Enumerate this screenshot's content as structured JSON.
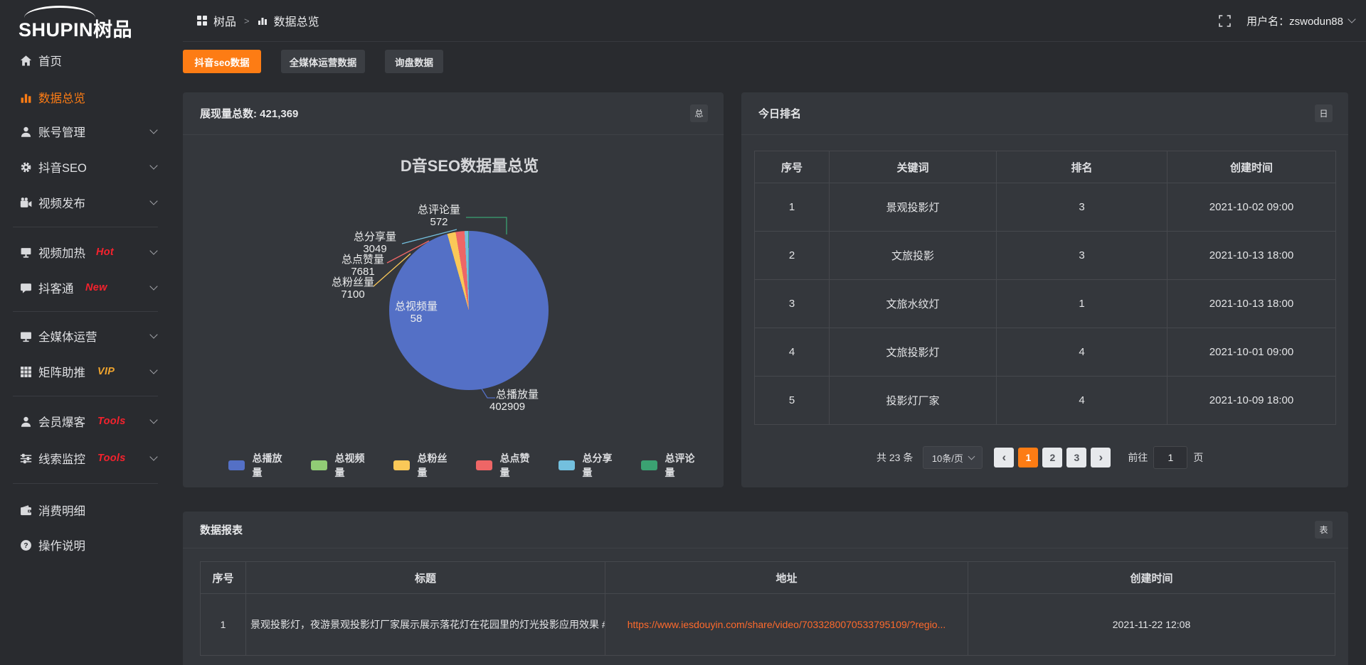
{
  "topbar": {
    "logo": "SHUPIN树品",
    "breadcrumb": {
      "root": "树品",
      "separator": ">",
      "current": "数据总览"
    },
    "username": "用户名：zswodun88"
  },
  "sidebar": {
    "items": [
      {
        "label": "首页"
      },
      {
        "label": "数据总览"
      },
      {
        "label": "账号管理"
      },
      {
        "label": "抖音SEO"
      },
      {
        "label": "视频发布"
      },
      {
        "label": "视频加热",
        "badge": "Hot"
      },
      {
        "label": "抖客通",
        "badge": "New"
      },
      {
        "label": "全媒体运营"
      },
      {
        "label": "矩阵助推",
        "badge": "VIP"
      },
      {
        "label": "会员爆客",
        "badge": "Tools"
      },
      {
        "label": "线索监控",
        "badge": "Tools"
      },
      {
        "label": "消费明细"
      },
      {
        "label": "操作说明"
      }
    ]
  },
  "tabs": [
    {
      "label": "抖音seo数据",
      "active": true
    },
    {
      "label": "全媒体运营数据",
      "active": false
    },
    {
      "label": "询盘数据",
      "active": false
    }
  ],
  "overview_panel": {
    "title": "展现量总数: 421,369",
    "corner_button": "总"
  },
  "chart_data": {
    "type": "pie",
    "title": "D音SEO数据量总览",
    "series": [
      {
        "name": "总播放量",
        "value": 402909,
        "color": "#5470c6"
      },
      {
        "name": "总视频量",
        "value": 58,
        "color": "#91cc75"
      },
      {
        "name": "总粉丝量",
        "value": 7100,
        "color": "#fac858"
      },
      {
        "name": "总点赞量",
        "value": 7681,
        "color": "#ee6666"
      },
      {
        "name": "总分享量",
        "value": 3049,
        "color": "#73c0de"
      },
      {
        "name": "总评论量",
        "value": 572,
        "color": "#3ba272"
      }
    ],
    "total": 421369,
    "legend_position": "bottom"
  },
  "ranking_panel": {
    "title": "今日排名",
    "corner_button": "日",
    "headers": [
      "序号",
      "关键词",
      "排名",
      "创建时间"
    ],
    "rows": [
      [
        "1",
        "景观投影灯",
        "3",
        "2021-10-02 09:00"
      ],
      [
        "2",
        "文旅投影",
        "3",
        "2021-10-13 18:00"
      ],
      [
        "3",
        "文旅水纹灯",
        "1",
        "2021-10-13 18:00"
      ],
      [
        "4",
        "文旅投影灯",
        "4",
        "2021-10-01 09:00"
      ],
      [
        "5",
        "投影灯厂家",
        "4",
        "2021-10-09 18:00"
      ]
    ],
    "pagination": {
      "total_label": "共 23 条",
      "page_size": "10条/页",
      "prev": "‹",
      "next": "›",
      "pages": [
        "1",
        "2",
        "3"
      ],
      "active_page": "1",
      "goto_label": "前往",
      "goto_value": "1",
      "goto_unit": "页"
    }
  },
  "report_panel": {
    "title": "数据报表",
    "corner_button": "表",
    "headers": [
      "序号",
      "标题",
      "地址",
      "创建时间"
    ],
    "rows": [
      [
        "1",
        "景观投影灯，夜游景观投影灯厂家展示展示落花灯在花园里的灯光投影应用效果 #",
        "https://www.iesdouyin.com/share/video/7033280070533795109/?regio...",
        "2021-11-22 12:08"
      ]
    ]
  }
}
